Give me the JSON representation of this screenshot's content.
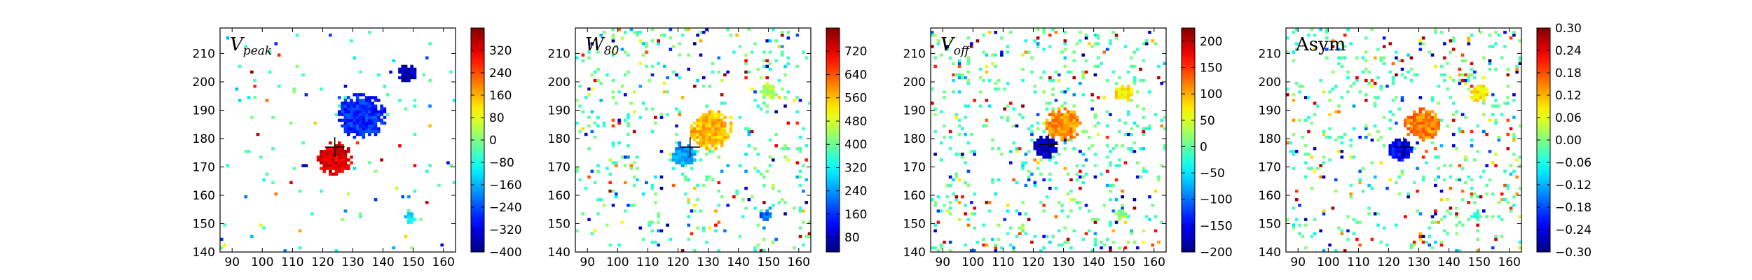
{
  "chart_data": [
    {
      "type": "heatmap",
      "label_main": "V",
      "label_sub": "peak",
      "xlim": [
        86,
        164
      ],
      "ylim": [
        140,
        219
      ],
      "xticks": [
        90,
        100,
        110,
        120,
        130,
        140,
        150,
        160
      ],
      "yticks": [
        140,
        150,
        160,
        170,
        180,
        190,
        200,
        210
      ],
      "colorbar": {
        "min": -400,
        "max": 400,
        "ticks": [
          320,
          240,
          160,
          80,
          0,
          -80,
          -160,
          -240,
          -320,
          -400
        ],
        "labels": [
          "320",
          "240",
          "160",
          "80",
          "0",
          "−80",
          "−160",
          "−240",
          "−320",
          "−400"
        ]
      },
      "marker": [
        124,
        177
      ],
      "blobs": [
        {
          "x": 124,
          "y": 173,
          "r": 6,
          "value": 330
        },
        {
          "x": 133,
          "y": 188,
          "r": 8,
          "value": -270
        },
        {
          "x": 148,
          "y": 203,
          "r": 3,
          "value": -350
        },
        {
          "x": 149,
          "y": 152,
          "r": 2,
          "value": -120
        }
      ],
      "noise_density": 0.018
    },
    {
      "type": "heatmap",
      "label_main": "W",
      "label_sub": "80",
      "xlim": [
        86,
        164
      ],
      "ylim": [
        140,
        219
      ],
      "xticks": [
        90,
        100,
        110,
        120,
        130,
        140,
        150,
        160
      ],
      "yticks": [
        140,
        150,
        160,
        170,
        180,
        190,
        200,
        210
      ],
      "colorbar": {
        "min": 30,
        "max": 800,
        "ticks": [
          720,
          640,
          560,
          480,
          400,
          320,
          240,
          160,
          80
        ],
        "labels": [
          "720",
          "640",
          "560",
          "480",
          "400",
          "320",
          "240",
          "160",
          "80"
        ]
      },
      "marker": [
        124,
        177
      ],
      "blobs": [
        {
          "x": 131,
          "y": 183,
          "r": 7,
          "value": 560
        },
        {
          "x": 122,
          "y": 174,
          "r": 4,
          "value": 260
        },
        {
          "x": 150,
          "y": 197,
          "r": 3,
          "value": 450
        },
        {
          "x": 149,
          "y": 153,
          "r": 2,
          "value": 200
        }
      ],
      "noise_density": 0.07
    },
    {
      "type": "heatmap",
      "label_main": "V",
      "label_sub": "off",
      "xlim": [
        86,
        164
      ],
      "ylim": [
        140,
        219
      ],
      "xticks": [
        90,
        100,
        110,
        120,
        130,
        140,
        150,
        160
      ],
      "yticks": [
        140,
        150,
        160,
        170,
        180,
        190,
        200,
        210
      ],
      "colorbar": {
        "min": -200,
        "max": 225,
        "ticks": [
          200,
          150,
          100,
          50,
          0,
          -50,
          -100,
          -150,
          -200
        ],
        "labels": [
          "200",
          "150",
          "100",
          "50",
          "0",
          "−50",
          "−100",
          "−150",
          "−200"
        ]
      },
      "marker": [
        125,
        178
      ],
      "blobs": [
        {
          "x": 130,
          "y": 185,
          "r": 6,
          "value": 110
        },
        {
          "x": 124,
          "y": 177,
          "r": 4,
          "value": -170
        },
        {
          "x": 150,
          "y": 196,
          "r": 3,
          "value": 70
        },
        {
          "x": 149,
          "y": 153,
          "r": 2,
          "value": 20
        }
      ],
      "noise_density": 0.09
    },
    {
      "type": "heatmap",
      "label_main": "Asym",
      "label_sub": "",
      "xlim": [
        86,
        164
      ],
      "ylim": [
        140,
        219
      ],
      "xticks": [
        90,
        100,
        110,
        120,
        130,
        140,
        150,
        160
      ],
      "yticks": [
        140,
        150,
        160,
        170,
        180,
        190,
        200,
        210
      ],
      "colorbar": {
        "min": -0.3,
        "max": 0.3,
        "ticks": [
          0.3,
          0.24,
          0.18,
          0.12,
          0.06,
          0.0,
          -0.06,
          -0.12,
          -0.18,
          -0.24,
          -0.3
        ],
        "labels": [
          "0.30",
          "0.24",
          "0.18",
          "0.12",
          "0.06",
          "0.00",
          "−0.06",
          "−0.12",
          "−0.18",
          "−0.24",
          "−0.30"
        ]
      },
      "marker": [
        125,
        177
      ],
      "blobs": [
        {
          "x": 131,
          "y": 185,
          "r": 6,
          "value": 0.15
        },
        {
          "x": 124,
          "y": 176,
          "r": 4,
          "value": -0.22
        },
        {
          "x": 150,
          "y": 196,
          "r": 3,
          "value": 0.08
        },
        {
          "x": 149,
          "y": 153,
          "r": 2,
          "value": -0.04
        }
      ],
      "noise_density": 0.09
    }
  ]
}
